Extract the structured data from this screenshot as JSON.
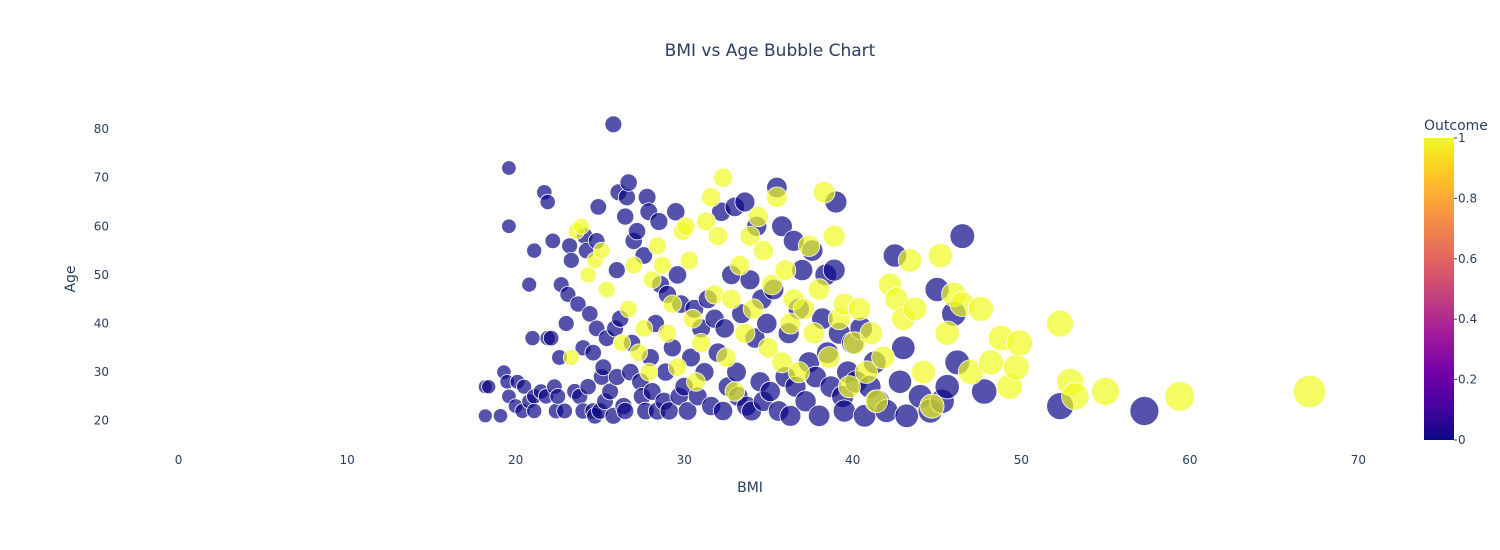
{
  "chart_data": {
    "type": "scatter",
    "subtype": "bubble",
    "title": "BMI vs Age Bubble Chart",
    "xlabel": "BMI",
    "ylabel": "Age",
    "xlim": [
      -3,
      73
    ],
    "ylim": [
      15,
      86
    ],
    "x_ticks": [
      "0",
      "10",
      "20",
      "30",
      "40",
      "50",
      "60",
      "70"
    ],
    "y_ticks": [
      "20",
      "30",
      "40",
      "50",
      "60",
      "70",
      "80"
    ],
    "grid": false,
    "colorbar": {
      "title": "Outcome",
      "range": [
        0,
        1
      ],
      "ticks": [
        "0",
        "0.2",
        "0.4",
        "0.6",
        "0.8",
        "1"
      ],
      "colorscale": [
        "#0d0887",
        "#46039f",
        "#7201a8",
        "#9c179e",
        "#bd3786",
        "#d8576b",
        "#ed7953",
        "#fb9f3a",
        "#fdca26",
        "#f0f921"
      ]
    },
    "marker_size_encodes": "BMI",
    "series": [
      {
        "outcome": 0,
        "color": "#0d0887",
        "points": [
          [
            18.2,
            21
          ],
          [
            18.2,
            27
          ],
          [
            18.4,
            27
          ],
          [
            19.1,
            21
          ],
          [
            19.3,
            30
          ],
          [
            19.5,
            28
          ],
          [
            19.6,
            25
          ],
          [
            19.6,
            72
          ],
          [
            19.6,
            60
          ],
          [
            20.0,
            23
          ],
          [
            20.1,
            28
          ],
          [
            20.4,
            22
          ],
          [
            20.5,
            27
          ],
          [
            20.8,
            24
          ],
          [
            20.8,
            48
          ],
          [
            21.0,
            37
          ],
          [
            21.1,
            55
          ],
          [
            21.1,
            25
          ],
          [
            21.1,
            22
          ],
          [
            21.5,
            26
          ],
          [
            21.7,
            67
          ],
          [
            21.8,
            25
          ],
          [
            21.9,
            65
          ],
          [
            21.9,
            37
          ],
          [
            22.1,
            37
          ],
          [
            22.2,
            57
          ],
          [
            22.3,
            27
          ],
          [
            22.4,
            22
          ],
          [
            22.5,
            25
          ],
          [
            22.6,
            33
          ],
          [
            22.7,
            48
          ],
          [
            22.9,
            22
          ],
          [
            23.0,
            40
          ],
          [
            23.1,
            46
          ],
          [
            23.2,
            56
          ],
          [
            23.3,
            53
          ],
          [
            23.5,
            26
          ],
          [
            23.7,
            44
          ],
          [
            23.8,
            25
          ],
          [
            24.0,
            35
          ],
          [
            24.0,
            22
          ],
          [
            24.1,
            58
          ],
          [
            24.2,
            55
          ],
          [
            24.3,
            27
          ],
          [
            24.4,
            42
          ],
          [
            24.6,
            34
          ],
          [
            24.6,
            22
          ],
          [
            24.7,
            21
          ],
          [
            24.8,
            57
          ],
          [
            24.8,
            39
          ],
          [
            24.9,
            64
          ],
          [
            25.0,
            22
          ],
          [
            25.1,
            29
          ],
          [
            25.2,
            31
          ],
          [
            25.3,
            24
          ],
          [
            25.4,
            37
          ],
          [
            25.6,
            26
          ],
          [
            25.8,
            81
          ],
          [
            25.8,
            21
          ],
          [
            25.9,
            39
          ],
          [
            26.0,
            51
          ],
          [
            26.0,
            29
          ],
          [
            26.1,
            67
          ],
          [
            26.2,
            41
          ],
          [
            26.4,
            23
          ],
          [
            26.5,
            62
          ],
          [
            26.5,
            22
          ],
          [
            26.6,
            66
          ],
          [
            26.7,
            69
          ],
          [
            26.8,
            30
          ],
          [
            26.9,
            36
          ],
          [
            27.0,
            57
          ],
          [
            27.2,
            59
          ],
          [
            27.4,
            28
          ],
          [
            27.5,
            25
          ],
          [
            27.6,
            54
          ],
          [
            27.7,
            22
          ],
          [
            27.8,
            66
          ],
          [
            27.9,
            63
          ],
          [
            28.0,
            33
          ],
          [
            28.1,
            26
          ],
          [
            28.3,
            40
          ],
          [
            28.4,
            22
          ],
          [
            28.5,
            61
          ],
          [
            28.6,
            48
          ],
          [
            28.8,
            24
          ],
          [
            28.9,
            30
          ],
          [
            29.0,
            46
          ],
          [
            29.1,
            22
          ],
          [
            29.3,
            35
          ],
          [
            29.5,
            63
          ],
          [
            29.6,
            50
          ],
          [
            29.7,
            25
          ],
          [
            29.8,
            44
          ],
          [
            30.0,
            27
          ],
          [
            30.2,
            22
          ],
          [
            30.4,
            33
          ],
          [
            30.6,
            43
          ],
          [
            30.8,
            25
          ],
          [
            31.0,
            39
          ],
          [
            31.2,
            30
          ],
          [
            31.4,
            45
          ],
          [
            31.6,
            23
          ],
          [
            31.8,
            41
          ],
          [
            32.0,
            34
          ],
          [
            32.2,
            63
          ],
          [
            32.3,
            22
          ],
          [
            32.4,
            39
          ],
          [
            32.6,
            27
          ],
          [
            32.8,
            50
          ],
          [
            33.0,
            64
          ],
          [
            33.1,
            30
          ],
          [
            33.2,
            25
          ],
          [
            33.4,
            42
          ],
          [
            33.6,
            65
          ],
          [
            33.7,
            23
          ],
          [
            33.9,
            49
          ],
          [
            34.0,
            22
          ],
          [
            34.2,
            37
          ],
          [
            34.3,
            60
          ],
          [
            34.5,
            28
          ],
          [
            34.6,
            45
          ],
          [
            34.7,
            24
          ],
          [
            34.9,
            40
          ],
          [
            35.1,
            26
          ],
          [
            35.3,
            47
          ],
          [
            35.5,
            68
          ],
          [
            35.6,
            22
          ],
          [
            35.8,
            60
          ],
          [
            36.0,
            29
          ],
          [
            36.2,
            38
          ],
          [
            36.3,
            21
          ],
          [
            36.5,
            57
          ],
          [
            36.6,
            27
          ],
          [
            36.8,
            43
          ],
          [
            37.0,
            51
          ],
          [
            37.2,
            24
          ],
          [
            37.4,
            32
          ],
          [
            37.6,
            55
          ],
          [
            37.8,
            29
          ],
          [
            38.0,
            21
          ],
          [
            38.2,
            41
          ],
          [
            38.4,
            50
          ],
          [
            38.5,
            34
          ],
          [
            38.7,
            27
          ],
          [
            38.9,
            51
          ],
          [
            39.0,
            65
          ],
          [
            39.2,
            38
          ],
          [
            39.4,
            25
          ],
          [
            39.5,
            22
          ],
          [
            39.7,
            30
          ],
          [
            40.0,
            36
          ],
          [
            40.2,
            28
          ],
          [
            40.5,
            39
          ],
          [
            40.7,
            21
          ],
          [
            41.0,
            27
          ],
          [
            41.3,
            32
          ],
          [
            41.5,
            24
          ],
          [
            42.0,
            22
          ],
          [
            42.5,
            54
          ],
          [
            42.8,
            28
          ],
          [
            43.0,
            35
          ],
          [
            43.2,
            21
          ],
          [
            44.0,
            25
          ],
          [
            44.6,
            22
          ],
          [
            45.0,
            47
          ],
          [
            45.3,
            24
          ],
          [
            45.6,
            27
          ],
          [
            46.0,
            42
          ],
          [
            46.2,
            32
          ],
          [
            46.5,
            58
          ],
          [
            47.8,
            26
          ],
          [
            52.3,
            23
          ],
          [
            57.3,
            22
          ]
        ]
      },
      {
        "outcome": 1,
        "color": "#f0f921",
        "points": [
          [
            23.3,
            33
          ],
          [
            23.6,
            59
          ],
          [
            23.9,
            60
          ],
          [
            24.3,
            50
          ],
          [
            24.7,
            53
          ],
          [
            25.1,
            55
          ],
          [
            25.4,
            47
          ],
          [
            26.3,
            36
          ],
          [
            26.7,
            43
          ],
          [
            27.0,
            52
          ],
          [
            27.3,
            34
          ],
          [
            27.6,
            39
          ],
          [
            27.9,
            30
          ],
          [
            28.1,
            49
          ],
          [
            28.4,
            56
          ],
          [
            28.7,
            52
          ],
          [
            29.0,
            38
          ],
          [
            29.3,
            44
          ],
          [
            29.6,
            31
          ],
          [
            29.9,
            59
          ],
          [
            30.1,
            60
          ],
          [
            30.3,
            53
          ],
          [
            30.5,
            41
          ],
          [
            30.7,
            28
          ],
          [
            31.0,
            36
          ],
          [
            31.3,
            61
          ],
          [
            31.6,
            66
          ],
          [
            31.8,
            46
          ],
          [
            32.0,
            58
          ],
          [
            32.3,
            70
          ],
          [
            32.5,
            33
          ],
          [
            32.8,
            45
          ],
          [
            33.0,
            26
          ],
          [
            33.3,
            52
          ],
          [
            33.6,
            38
          ],
          [
            33.9,
            58
          ],
          [
            34.1,
            43
          ],
          [
            34.4,
            62
          ],
          [
            34.7,
            55
          ],
          [
            35.0,
            35
          ],
          [
            35.2,
            48
          ],
          [
            35.5,
            66
          ],
          [
            35.8,
            32
          ],
          [
            36.0,
            51
          ],
          [
            36.3,
            40
          ],
          [
            36.5,
            45
          ],
          [
            36.8,
            30
          ],
          [
            37.1,
            43
          ],
          [
            37.4,
            56
          ],
          [
            37.7,
            38
          ],
          [
            38.0,
            47
          ],
          [
            38.3,
            67
          ],
          [
            38.6,
            33
          ],
          [
            38.9,
            58
          ],
          [
            39.2,
            41
          ],
          [
            39.5,
            44
          ],
          [
            39.8,
            27
          ],
          [
            40.1,
            36
          ],
          [
            40.4,
            43
          ],
          [
            40.8,
            30
          ],
          [
            41.1,
            38
          ],
          [
            41.4,
            24
          ],
          [
            41.8,
            33
          ],
          [
            42.2,
            48
          ],
          [
            42.6,
            45
          ],
          [
            43.0,
            41
          ],
          [
            43.4,
            53
          ],
          [
            43.7,
            43
          ],
          [
            44.2,
            30
          ],
          [
            44.7,
            23
          ],
          [
            45.2,
            54
          ],
          [
            45.6,
            38
          ],
          [
            46.0,
            46
          ],
          [
            46.5,
            44
          ],
          [
            47.0,
            30
          ],
          [
            47.6,
            43
          ],
          [
            48.2,
            32
          ],
          [
            48.8,
            37
          ],
          [
            49.3,
            27
          ],
          [
            49.7,
            31
          ],
          [
            49.9,
            36
          ],
          [
            52.3,
            40
          ],
          [
            52.9,
            28
          ],
          [
            53.2,
            25
          ],
          [
            55.0,
            26
          ],
          [
            59.4,
            25
          ],
          [
            67.1,
            26
          ]
        ]
      }
    ]
  }
}
